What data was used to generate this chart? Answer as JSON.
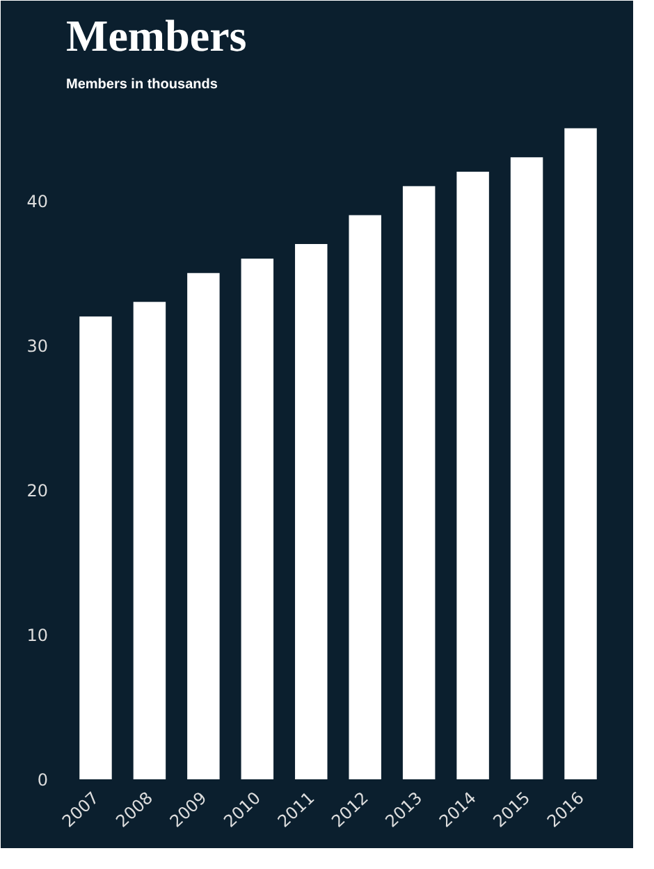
{
  "chart_data": {
    "type": "bar",
    "title": "Members",
    "subtitle": "Members in thousands",
    "categories": [
      "2007",
      "2008",
      "2009",
      "2010",
      "2011",
      "2012",
      "2013",
      "2014",
      "2015",
      "2016"
    ],
    "values": [
      32,
      33,
      35,
      36,
      37,
      39,
      41,
      42,
      43,
      45
    ],
    "color": "#ffffff",
    "ylim": [
      0,
      47
    ],
    "yticks": [
      0,
      10,
      20,
      30,
      40
    ],
    "grid": false
  }
}
